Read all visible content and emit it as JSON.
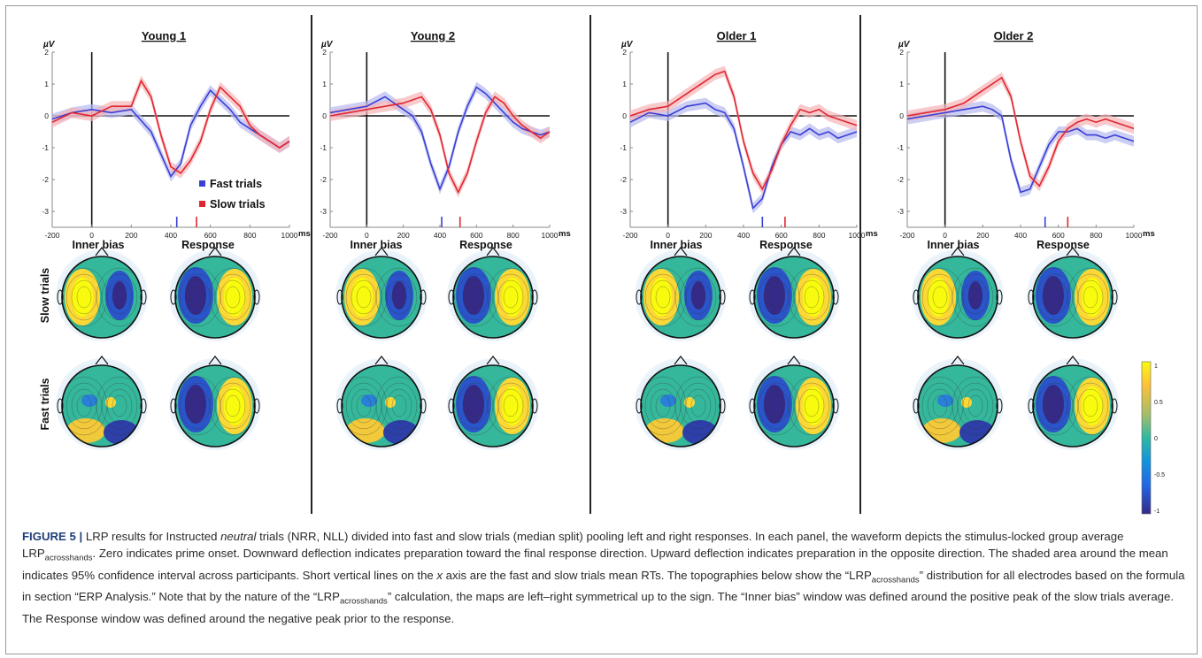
{
  "figure": {
    "label": "FIGURE 5 |",
    "y_unit": "µV",
    "x_unit": "ms",
    "row_labels": [
      "Slow trials",
      "Fast trials"
    ],
    "window_labels": [
      "Inner bias",
      "Response"
    ],
    "legend": {
      "fast_label": "Fast trials",
      "slow_label": "Slow trials",
      "fast_color": "#3a3fd6",
      "slow_color": "#e2262f"
    },
    "colorbar": {
      "ticks": [
        "1",
        "0.5",
        "0",
        "-0.5",
        "-1"
      ],
      "colormap": "parula"
    }
  },
  "chart_data": [
    {
      "type": "line",
      "title": "Young 1",
      "x_ticks": [
        -200,
        0,
        200,
        400,
        600,
        800,
        1000
      ],
      "y_ticks": [
        2,
        1,
        0,
        -1,
        -2,
        -3
      ],
      "xlim": [
        -200,
        1000
      ],
      "ylim": [
        -3.5,
        2
      ],
      "series": [
        {
          "name": "Fast trials",
          "x": [
            -200,
            -100,
            0,
            100,
            200,
            300,
            350,
            400,
            450,
            500,
            550,
            600,
            650,
            700,
            750,
            800,
            850,
            900,
            950,
            1000
          ],
          "y": [
            -0.1,
            0.1,
            0.2,
            0.1,
            0.2,
            -0.5,
            -1.2,
            -1.9,
            -1.5,
            -0.3,
            0.3,
            0.8,
            0.5,
            0.2,
            -0.2,
            -0.4,
            -0.6,
            -0.8,
            -1.0,
            -0.8
          ]
        },
        {
          "name": "Slow trials",
          "x": [
            -200,
            -100,
            0,
            100,
            200,
            250,
            300,
            350,
            400,
            450,
            500,
            550,
            600,
            650,
            700,
            750,
            800,
            850,
            900,
            950,
            1000
          ],
          "y": [
            -0.2,
            0.1,
            0.0,
            0.3,
            0.3,
            1.1,
            0.6,
            -0.6,
            -1.6,
            -1.8,
            -1.4,
            -0.8,
            0.2,
            0.9,
            0.6,
            0.3,
            -0.3,
            -0.6,
            -0.8,
            -1.0,
            -0.8
          ]
        }
      ],
      "rt_markers": {
        "fast": 430,
        "slow": 530
      }
    },
    {
      "type": "line",
      "title": "Young 2",
      "x_ticks": [
        -200,
        0,
        200,
        400,
        600,
        800,
        1000
      ],
      "y_ticks": [
        2,
        1,
        0,
        -1,
        -2,
        -3
      ],
      "xlim": [
        -200,
        1000
      ],
      "ylim": [
        -3.5,
        2
      ],
      "series": [
        {
          "name": "Fast trials",
          "x": [
            -200,
            -100,
            0,
            100,
            150,
            200,
            250,
            300,
            350,
            400,
            450,
            500,
            550,
            600,
            650,
            700,
            750,
            800,
            850,
            900,
            950,
            1000
          ],
          "y": [
            0.1,
            0.2,
            0.3,
            0.6,
            0.4,
            0.2,
            0.0,
            -0.5,
            -1.5,
            -2.3,
            -1.6,
            -0.5,
            0.3,
            0.9,
            0.7,
            0.4,
            0.1,
            -0.2,
            -0.4,
            -0.5,
            -0.6,
            -0.5
          ]
        },
        {
          "name": "Slow trials",
          "x": [
            -200,
            -100,
            0,
            100,
            200,
            300,
            350,
            400,
            450,
            500,
            550,
            600,
            650,
            700,
            750,
            800,
            850,
            900,
            950,
            1000
          ],
          "y": [
            0.0,
            0.1,
            0.2,
            0.3,
            0.4,
            0.6,
            0.2,
            -0.6,
            -1.8,
            -2.4,
            -1.8,
            -0.8,
            0.1,
            0.6,
            0.4,
            0.0,
            -0.3,
            -0.5,
            -0.7,
            -0.5
          ]
        }
      ],
      "rt_markers": {
        "fast": 410,
        "slow": 510
      }
    },
    {
      "type": "line",
      "title": "Older 1",
      "x_ticks": [
        -200,
        0,
        200,
        400,
        600,
        800,
        1000
      ],
      "y_ticks": [
        2,
        1,
        0,
        -1,
        -2,
        -3
      ],
      "xlim": [
        -200,
        1000
      ],
      "ylim": [
        -3.5,
        2
      ],
      "series": [
        {
          "name": "Fast trials",
          "x": [
            -200,
            -100,
            0,
            100,
            200,
            250,
            300,
            350,
            400,
            450,
            500,
            550,
            600,
            650,
            700,
            750,
            800,
            850,
            900,
            950,
            1000
          ],
          "y": [
            -0.2,
            0.1,
            0.0,
            0.3,
            0.4,
            0.2,
            0.1,
            -0.4,
            -1.6,
            -2.9,
            -2.6,
            -1.6,
            -0.9,
            -0.5,
            -0.6,
            -0.4,
            -0.6,
            -0.5,
            -0.7,
            -0.6,
            -0.5
          ]
        },
        {
          "name": "Slow trials",
          "x": [
            -200,
            -100,
            0,
            100,
            200,
            250,
            300,
            350,
            400,
            450,
            500,
            550,
            600,
            650,
            700,
            750,
            800,
            850,
            900,
            950,
            1000
          ],
          "y": [
            0.0,
            0.2,
            0.3,
            0.7,
            1.1,
            1.3,
            1.4,
            0.6,
            -0.8,
            -1.8,
            -2.3,
            -1.7,
            -0.9,
            -0.3,
            0.2,
            0.1,
            0.2,
            0.0,
            -0.1,
            -0.2,
            -0.3
          ]
        }
      ],
      "rt_markers": {
        "fast": 500,
        "slow": 620
      }
    },
    {
      "type": "line",
      "title": "Older 2",
      "x_ticks": [
        -200,
        0,
        200,
        400,
        600,
        800,
        1000
      ],
      "y_ticks": [
        2,
        1,
        0,
        -1,
        -2,
        -3
      ],
      "xlim": [
        -200,
        1000
      ],
      "ylim": [
        -3.5,
        2
      ],
      "series": [
        {
          "name": "Fast trials",
          "x": [
            -200,
            -100,
            0,
            100,
            200,
            250,
            300,
            350,
            400,
            450,
            500,
            550,
            600,
            650,
            700,
            750,
            800,
            850,
            900,
            950,
            1000
          ],
          "y": [
            -0.1,
            0.0,
            0.1,
            0.2,
            0.3,
            0.2,
            0.0,
            -1.4,
            -2.4,
            -2.3,
            -1.6,
            -0.9,
            -0.5,
            -0.5,
            -0.4,
            -0.6,
            -0.6,
            -0.7,
            -0.6,
            -0.7,
            -0.8
          ]
        },
        {
          "name": "Slow trials",
          "x": [
            -200,
            -100,
            0,
            100,
            200,
            250,
            300,
            350,
            400,
            450,
            500,
            550,
            600,
            650,
            700,
            750,
            800,
            850,
            900,
            950,
            1000
          ],
          "y": [
            0.0,
            0.1,
            0.2,
            0.4,
            0.8,
            1.0,
            1.2,
            0.6,
            -0.8,
            -1.9,
            -2.2,
            -1.6,
            -0.8,
            -0.4,
            -0.2,
            -0.1,
            -0.2,
            -0.1,
            -0.2,
            -0.3,
            -0.4
          ]
        }
      ],
      "rt_markers": {
        "fast": 530,
        "slow": 650
      }
    }
  ],
  "caption": {
    "p1": "LRP results for Instructed ",
    "p1_em": "neutral",
    "p2": " trials (NRR, NLL) divided into fast and slow trials (median split) pooling left and right responses. In each panel, the waveform depicts the stimulus-locked group average LRP",
    "sub1": "acrosshands",
    "p3": ". Zero indicates prime onset. Downward deflection indicates preparation toward the final response direction. Upward deflection indicates preparation in the opposite direction. The shaded area around the mean indicates 95% confidence interval across participants. Short vertical lines on the ",
    "p3_em": "x",
    "p4": " axis are the fast and slow trials mean RTs. The topographies below show the “LRP",
    "sub2": "acrosshands",
    "p5": "” distribution for all electrodes based on the formula in section “ERP Analysis.” Note that by the nature of the “LRP",
    "sub3": "acrosshands",
    "p6": "” calculation, the maps are left–right symmetrical up to the sign. The “Inner bias” window was defined around the positive peak of the slow trials average. The Response window was defined around the negative peak prior to the response."
  }
}
